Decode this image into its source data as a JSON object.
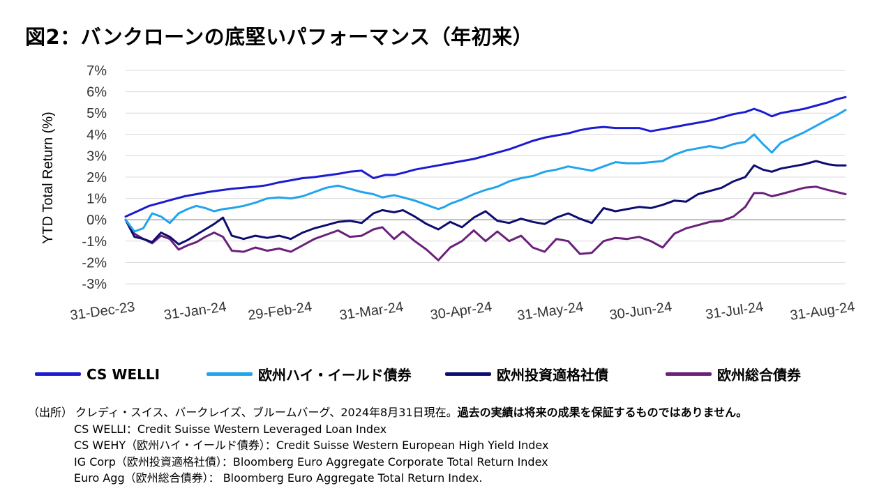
{
  "title": "図2：バンクローンの底堅いパフォーマンス（年初来）",
  "legend": [
    {
      "label": "CS WELLI",
      "color": "#1b1bd0"
    },
    {
      "label": "欧州ハイ・イールド債券",
      "color": "#20a4ee"
    },
    {
      "label": "欧州投資適格社債",
      "color": "#0d0d70"
    },
    {
      "label": "欧州総合債券",
      "color": "#6a217a"
    }
  ],
  "notes": {
    "source_label": "（出所）",
    "source_text": "クレディ・スイス、バークレイズ、ブルームバーグ、2024年8月31日現在。",
    "disclaimer": "過去の実績は将来の成果を保証するものではありません。",
    "defs": [
      "CS WELLI：Credit Suisse Western Leveraged Loan Index",
      "CS WEHY（欧州ハイ・イールド債券）：Credit Suisse Western European High Yield Index",
      "IG Corp（欧州投資適格社債）：Bloomberg Euro Aggregate Corporate Total Return Index",
      "Euro Agg（欧州総合債券）： Bloomberg Euro Aggregate Total Return Index."
    ]
  },
  "chart_data": {
    "type": "line",
    "ylabel": "YTD Total Return (%)",
    "xlabel": "",
    "ylim": [
      -3,
      7
    ],
    "y_ticks": [
      7,
      6,
      5,
      4,
      3,
      2,
      1,
      0,
      -1,
      -2,
      -3
    ],
    "y_tick_labels": [
      "7%",
      "6%",
      "5%",
      "4%",
      "3%",
      "2%",
      "1%",
      "0%",
      "-1%",
      "-2%",
      "-3%"
    ],
    "x_tick_labels": [
      "31-Dec-23",
      "31-Jan-24",
      "29-Feb-24",
      "31-Mar-24",
      "30-Apr-24",
      "31-May-24",
      "30-Jun-24",
      "31-Jul-24",
      "31-Aug-24"
    ],
    "x_tick_days": [
      0,
      31,
      60,
      91,
      121,
      152,
      182,
      213,
      244
    ],
    "grid": true,
    "series": [
      {
        "name": "CS WELLI",
        "color": "#1b1bd0",
        "x": [
          0,
          4,
          8,
          12,
          16,
          20,
          24,
          28,
          32,
          36,
          40,
          44,
          48,
          52,
          56,
          60,
          64,
          68,
          72,
          76,
          80,
          84,
          88,
          91,
          94,
          98,
          102,
          106,
          110,
          114,
          118,
          122,
          126,
          130,
          134,
          138,
          142,
          146,
          150,
          154,
          158,
          162,
          166,
          170,
          174,
          178,
          182,
          186,
          190,
          194,
          198,
          202,
          206,
          210,
          213,
          216,
          219,
          222,
          226,
          230,
          234,
          238,
          241,
          244
        ],
        "y": [
          0.15,
          0.4,
          0.65,
          0.8,
          0.95,
          1.1,
          1.2,
          1.3,
          1.38,
          1.45,
          1.5,
          1.55,
          1.62,
          1.75,
          1.85,
          1.95,
          2.0,
          2.08,
          2.15,
          2.25,
          2.3,
          1.95,
          2.1,
          2.1,
          2.2,
          2.35,
          2.45,
          2.55,
          2.65,
          2.75,
          2.85,
          3.0,
          3.15,
          3.3,
          3.5,
          3.7,
          3.85,
          3.95,
          4.05,
          4.2,
          4.3,
          4.35,
          4.3,
          4.3,
          4.3,
          4.15,
          4.25,
          4.35,
          4.45,
          4.55,
          4.65,
          4.8,
          4.95,
          5.05,
          5.2,
          5.05,
          4.85,
          5.0,
          5.1,
          5.2,
          5.35,
          5.5,
          5.65,
          5.75
        ]
      },
      {
        "name": "欧州ハイ・イールド債券",
        "color": "#20a4ee",
        "x": [
          0,
          3,
          6,
          9,
          12,
          15,
          18,
          21,
          24,
          27,
          30,
          33,
          36,
          40,
          44,
          48,
          52,
          56,
          60,
          64,
          68,
          72,
          76,
          80,
          84,
          87,
          91,
          94,
          98,
          102,
          106,
          108,
          110,
          114,
          118,
          122,
          126,
          130,
          134,
          138,
          142,
          146,
          150,
          154,
          158,
          162,
          166,
          170,
          174,
          178,
          182,
          186,
          190,
          194,
          198,
          202,
          206,
          210,
          213,
          216,
          219,
          222,
          226,
          230,
          234,
          238,
          241,
          244
        ],
        "y": [
          0.0,
          -0.55,
          -0.4,
          0.3,
          0.15,
          -0.15,
          0.3,
          0.5,
          0.65,
          0.55,
          0.4,
          0.5,
          0.55,
          0.65,
          0.8,
          1.0,
          1.05,
          1.0,
          1.1,
          1.3,
          1.5,
          1.6,
          1.45,
          1.3,
          1.2,
          1.05,
          1.15,
          1.05,
          0.9,
          0.7,
          0.5,
          0.6,
          0.75,
          0.95,
          1.2,
          1.4,
          1.55,
          1.8,
          1.95,
          2.05,
          2.25,
          2.35,
          2.5,
          2.4,
          2.3,
          2.5,
          2.7,
          2.65,
          2.65,
          2.7,
          2.75,
          3.05,
          3.25,
          3.35,
          3.45,
          3.35,
          3.55,
          3.65,
          4.0,
          3.55,
          3.15,
          3.6,
          3.85,
          4.1,
          4.4,
          4.7,
          4.9,
          5.15
        ]
      },
      {
        "name": "欧州投資適格社債",
        "color": "#0d0d70",
        "x": [
          0,
          3,
          6,
          9,
          12,
          15,
          18,
          21,
          24,
          27,
          30,
          33,
          36,
          40,
          44,
          48,
          52,
          56,
          60,
          64,
          68,
          72,
          76,
          80,
          84,
          87,
          91,
          94,
          98,
          102,
          106,
          110,
          114,
          118,
          122,
          126,
          130,
          134,
          138,
          142,
          146,
          150,
          154,
          158,
          162,
          166,
          170,
          174,
          178,
          182,
          186,
          190,
          194,
          198,
          202,
          206,
          210,
          213,
          216,
          219,
          222,
          226,
          230,
          234,
          238,
          241,
          244
        ],
        "y": [
          0.0,
          -0.8,
          -0.9,
          -1.05,
          -0.6,
          -0.8,
          -1.15,
          -0.95,
          -0.7,
          -0.45,
          -0.2,
          0.1,
          -0.75,
          -0.9,
          -0.75,
          -0.85,
          -0.75,
          -0.9,
          -0.6,
          -0.4,
          -0.25,
          -0.1,
          -0.05,
          -0.15,
          0.3,
          0.45,
          0.35,
          0.45,
          0.15,
          -0.2,
          -0.45,
          -0.1,
          -0.35,
          0.1,
          0.4,
          -0.05,
          -0.15,
          0.05,
          -0.1,
          -0.2,
          0.1,
          0.3,
          0.05,
          -0.15,
          0.55,
          0.4,
          0.5,
          0.6,
          0.55,
          0.7,
          0.9,
          0.85,
          1.2,
          1.35,
          1.5,
          1.8,
          2.0,
          2.55,
          2.35,
          2.25,
          2.4,
          2.5,
          2.6,
          2.75,
          2.6,
          2.55,
          2.55
        ]
      },
      {
        "name": "欧州総合債券",
        "color": "#6a217a",
        "x": [
          0,
          3,
          6,
          9,
          12,
          15,
          18,
          21,
          24,
          27,
          30,
          33,
          36,
          40,
          44,
          48,
          52,
          56,
          60,
          64,
          68,
          72,
          76,
          80,
          84,
          87,
          91,
          94,
          98,
          102,
          106,
          110,
          114,
          118,
          122,
          126,
          130,
          134,
          138,
          142,
          146,
          150,
          154,
          158,
          162,
          166,
          170,
          174,
          178,
          182,
          186,
          190,
          194,
          198,
          202,
          206,
          210,
          213,
          216,
          219,
          222,
          226,
          230,
          234,
          238,
          241,
          244
        ],
        "y": [
          0.0,
          -0.65,
          -0.9,
          -1.1,
          -0.75,
          -0.9,
          -1.4,
          -1.2,
          -1.05,
          -0.8,
          -0.6,
          -0.8,
          -1.45,
          -1.5,
          -1.3,
          -1.45,
          -1.35,
          -1.5,
          -1.2,
          -0.9,
          -0.7,
          -0.5,
          -0.8,
          -0.75,
          -0.45,
          -0.35,
          -0.9,
          -0.55,
          -1.0,
          -1.4,
          -1.9,
          -1.3,
          -1.0,
          -0.5,
          -1.0,
          -0.55,
          -1.0,
          -0.75,
          -1.3,
          -1.5,
          -0.9,
          -1.0,
          -1.6,
          -1.55,
          -1.0,
          -0.85,
          -0.9,
          -0.8,
          -1.0,
          -1.3,
          -0.65,
          -0.4,
          -0.25,
          -0.1,
          -0.05,
          0.15,
          0.6,
          1.25,
          1.25,
          1.1,
          1.2,
          1.35,
          1.5,
          1.55,
          1.4,
          1.3,
          1.2
        ]
      }
    ]
  }
}
